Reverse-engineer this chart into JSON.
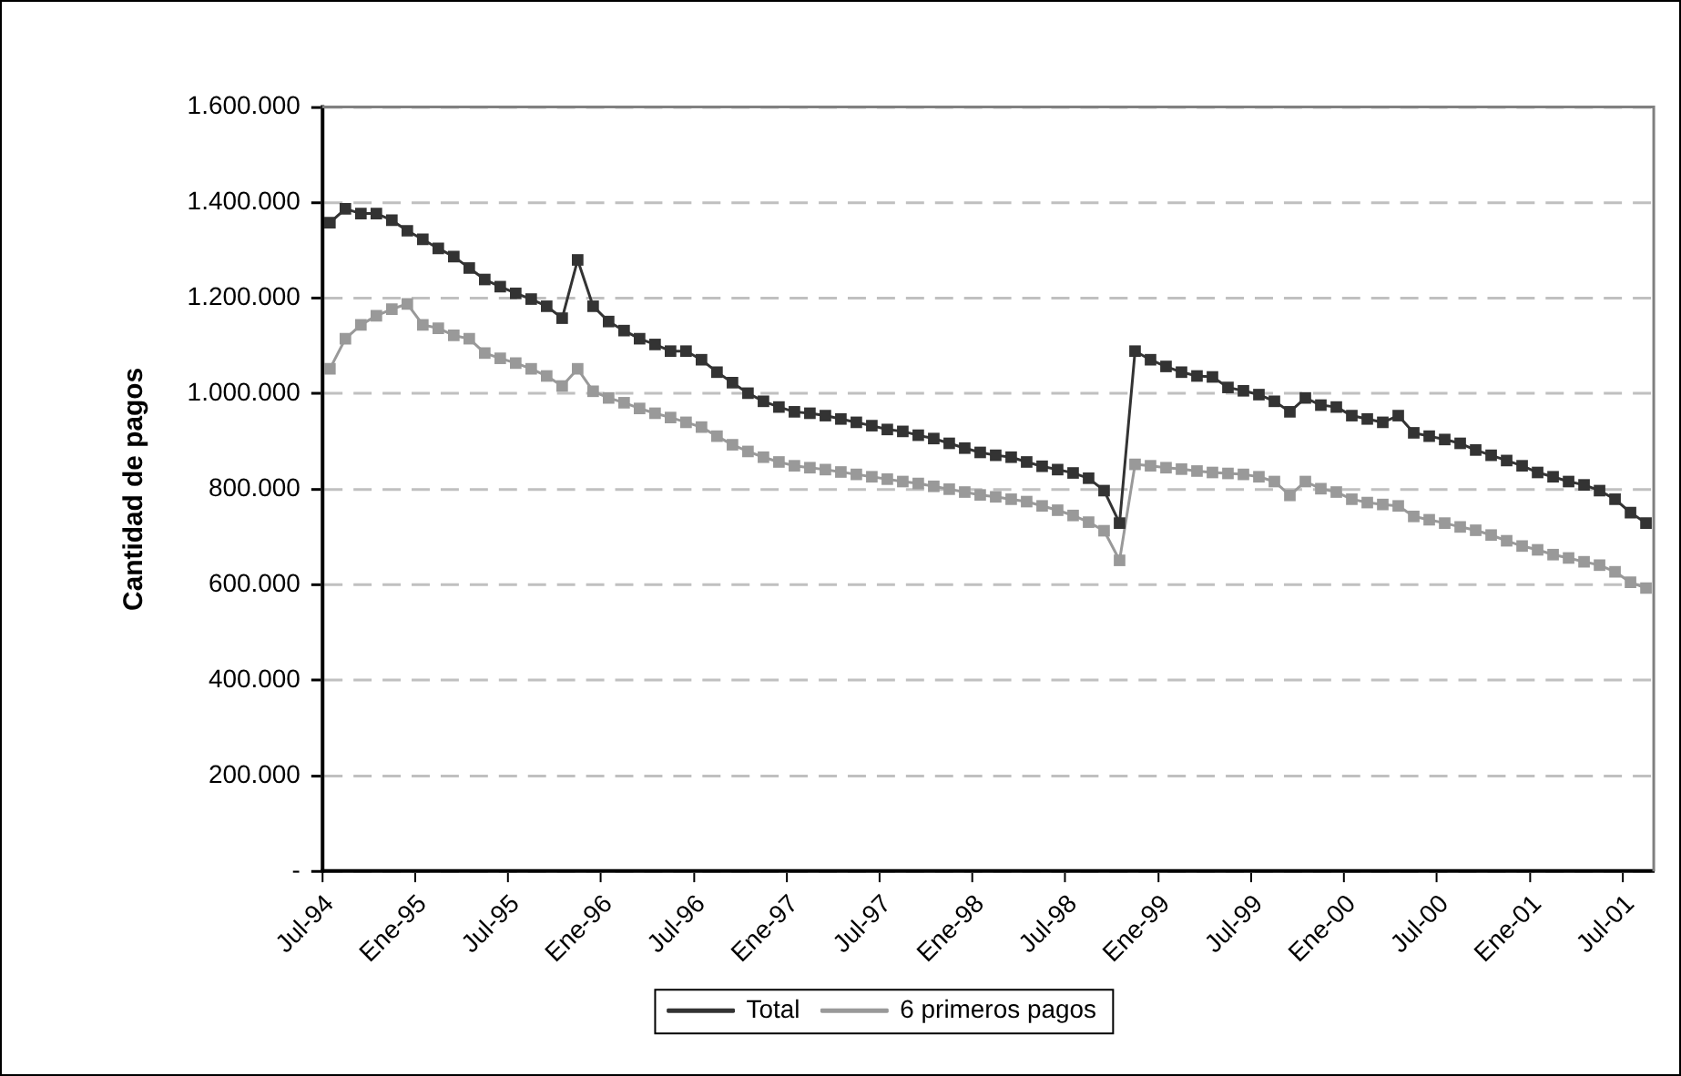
{
  "chart_data": {
    "type": "line",
    "ylabel": "Cantidad de pagos",
    "categories": [
      "Jul-94",
      null,
      null,
      null,
      null,
      null,
      "Ene-95",
      null,
      null,
      null,
      null,
      null,
      "Jul-95",
      null,
      null,
      null,
      null,
      null,
      "Ene-96",
      null,
      null,
      null,
      null,
      null,
      "Jul-96",
      null,
      null,
      null,
      null,
      null,
      "Ene-97",
      null,
      null,
      null,
      null,
      null,
      "Jul-97",
      null,
      null,
      null,
      null,
      null,
      "Ene-98",
      null,
      null,
      null,
      null,
      null,
      "Jul-98",
      null,
      null,
      null,
      null,
      null,
      "Ene-99",
      null,
      null,
      null,
      null,
      null,
      "Jul-99",
      null,
      null,
      null,
      null,
      null,
      "Ene-00",
      null,
      null,
      null,
      null,
      null,
      "Jul-00",
      null,
      null,
      null,
      null,
      null,
      "Ene-01",
      null,
      null,
      null,
      null,
      null,
      "Jul-01",
      null
    ],
    "series": [
      {
        "name": "Total",
        "color": "#333333",
        "values": [
          1358000,
          1387000,
          1377000,
          1377000,
          1363000,
          1341000,
          1323000,
          1304000,
          1287000,
          1263000,
          1239000,
          1224000,
          1210000,
          1198000,
          1183000,
          1158000,
          1280000,
          1183000,
          1151000,
          1132000,
          1115000,
          1103000,
          1089000,
          1089000,
          1071000,
          1045000,
          1023000,
          1001000,
          984000,
          972000,
          962000,
          959000,
          954000,
          947000,
          940000,
          933000,
          925000,
          921000,
          913000,
          906000,
          896000,
          886000,
          877000,
          871000,
          867000,
          857000,
          848000,
          841000,
          834000,
          823000,
          797000,
          729000,
          1089000,
          1071000,
          1057000,
          1045000,
          1037000,
          1035000,
          1013000,
          1006000,
          998000,
          984000,
          962000,
          991000,
          976000,
          972000,
          954000,
          947000,
          940000,
          954000,
          918000,
          911000,
          904000,
          896000,
          882000,
          871000,
          860000,
          849000,
          835000,
          826000,
          816000,
          809000,
          797000,
          779000,
          751000,
          729000
        ]
      },
      {
        "name": "6 primeros pagos",
        "color": "#999999",
        "values": [
          1052000,
          1115000,
          1144000,
          1163000,
          1177000,
          1188000,
          1144000,
          1137000,
          1122000,
          1115000,
          1085000,
          1074000,
          1064000,
          1052000,
          1037000,
          1016000,
          1052000,
          1005000,
          991000,
          981000,
          969000,
          959000,
          950000,
          940000,
          930000,
          911000,
          893000,
          879000,
          867000,
          857000,
          849000,
          845000,
          841000,
          836000,
          831000,
          826000,
          821000,
          816000,
          812000,
          806000,
          800000,
          794000,
          788000,
          784000,
          779000,
          774000,
          765000,
          756000,
          745000,
          731000,
          713000,
          651000,
          852000,
          849000,
          845000,
          842000,
          838000,
          835000,
          833000,
          831000,
          826000,
          816000,
          787000,
          816000,
          801000,
          794000,
          779000,
          772000,
          768000,
          765000,
          743000,
          736000,
          729000,
          721000,
          714000,
          704000,
          692000,
          681000,
          673000,
          663000,
          656000,
          648000,
          641000,
          627000,
          605000,
          593000
        ]
      }
    ],
    "ylim": [
      0,
      1600000
    ],
    "yticks": [
      {
        "value": 0,
        "label": "-"
      },
      {
        "value": 200000,
        "label": "200.000"
      },
      {
        "value": 400000,
        "label": "400.000"
      },
      {
        "value": 600000,
        "label": "600.000"
      },
      {
        "value": 800000,
        "label": "800.000"
      },
      {
        "value": 1000000,
        "label": "1.000.000"
      },
      {
        "value": 1200000,
        "label": "1.200.000"
      },
      {
        "value": 1400000,
        "label": "1.400.000"
      },
      {
        "value": 1600000,
        "label": "1.600.000"
      }
    ],
    "grid": "y",
    "legend": "bottom",
    "marker": "square",
    "line_style": "solid"
  }
}
